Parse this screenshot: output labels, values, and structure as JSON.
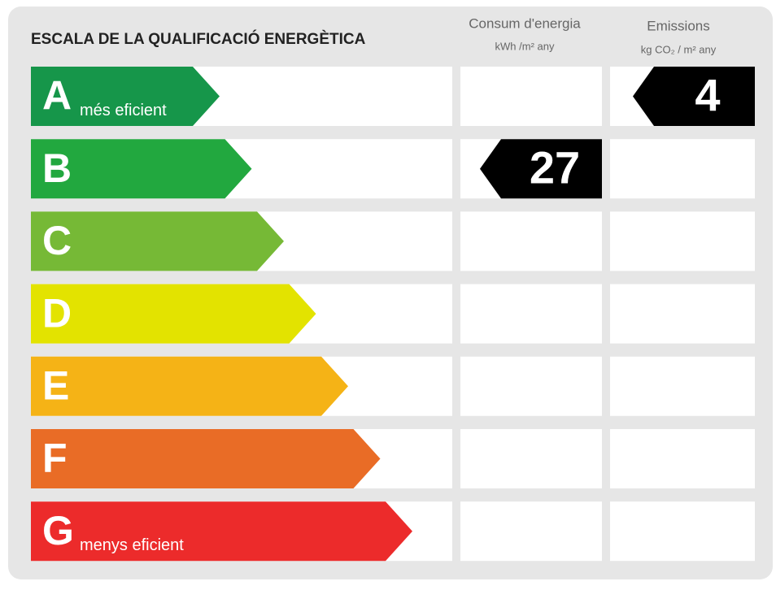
{
  "header": {
    "title": "ESCALA DE LA QUALIFICACIÓ ENERGÈTICA"
  },
  "columns": [
    {
      "name": "Consum d'energia",
      "unit": "kWh /m² any"
    },
    {
      "name": "Emissions",
      "unit": "kg CO₂ / m² any"
    }
  ],
  "rows": [
    {
      "letter": "A",
      "note": "més eficient",
      "color": "#16964a",
      "emissions": 4
    },
    {
      "letter": "B",
      "color": "#22a83f",
      "consumption": 27
    },
    {
      "letter": "C",
      "color": "#76b936"
    },
    {
      "letter": "D",
      "color": "#e3e300"
    },
    {
      "letter": "E",
      "color": "#f5b316"
    },
    {
      "letter": "F",
      "color": "#e96c26"
    },
    {
      "letter": "G",
      "note": "menys eficient",
      "color": "#ec2b2b"
    }
  ]
}
